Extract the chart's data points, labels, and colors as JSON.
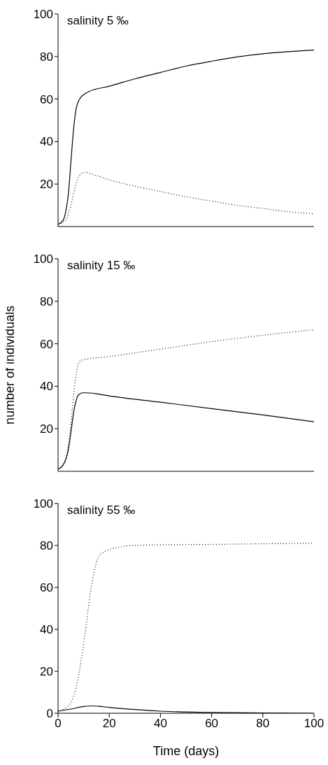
{
  "chart_data": [
    {
      "type": "line",
      "annotations": [
        "salinity 5 ‰"
      ],
      "xlim": [
        0,
        100
      ],
      "xticks": [
        0,
        20,
        40,
        60,
        80,
        100
      ],
      "ylim": [
        0,
        100
      ],
      "yticks": [
        20,
        40,
        60,
        80,
        100
      ],
      "tick_labels": "y",
      "grid": false,
      "legend": false,
      "marker": "none",
      "series": [
        {
          "color": "#000000",
          "line_style": "solid",
          "x": [
            0,
            2,
            3,
            4,
            5,
            6,
            7,
            8,
            9,
            10,
            12,
            20,
            30,
            40,
            50,
            60,
            70,
            80,
            90,
            100
          ],
          "values": [
            1,
            3,
            7,
            15,
            30,
            45,
            55,
            59,
            61,
            62,
            63.5,
            66,
            69.5,
            72.5,
            75.5,
            77.8,
            79.8,
            81.3,
            82.3,
            83
          ]
        },
        {
          "color": "#000000",
          "line_style": "dotted",
          "x": [
            0,
            3,
            5,
            7,
            9,
            10,
            15,
            20,
            30,
            40,
            50,
            60,
            70,
            80,
            90,
            100
          ],
          "values": [
            1,
            3,
            10,
            20,
            25,
            25.5,
            24,
            22,
            19,
            16.5,
            14,
            12,
            10,
            8.5,
            7,
            6
          ]
        }
      ]
    },
    {
      "type": "line",
      "annotations": [
        "salinity 15 ‰"
      ],
      "ylabel": "number of individuals",
      "xlim": [
        0,
        100
      ],
      "xticks": [
        0,
        20,
        40,
        60,
        80,
        100
      ],
      "ylim": [
        0,
        100
      ],
      "yticks": [
        20,
        40,
        60,
        80,
        100
      ],
      "tick_labels": "y",
      "grid": false,
      "legend": false,
      "marker": "none",
      "series": [
        {
          "color": "#000000",
          "line_style": "solid",
          "x": [
            0,
            2,
            4,
            5,
            6,
            7,
            8,
            10,
            15,
            20,
            40,
            60,
            80,
            100
          ],
          "values": [
            1,
            3,
            10,
            18,
            27,
            33,
            36,
            37,
            36.5,
            35.5,
            32.5,
            29.5,
            26.5,
            23.3
          ]
        },
        {
          "color": "#000000",
          "line_style": "dotted",
          "x": [
            0,
            2,
            4,
            5,
            6,
            7,
            8,
            10,
            20,
            40,
            60,
            80,
            100
          ],
          "values": [
            1,
            3,
            12,
            22,
            35,
            45,
            51,
            52.5,
            54,
            57.5,
            61,
            64,
            66.6
          ]
        }
      ]
    },
    {
      "type": "line",
      "annotations": [
        "salinity 55 ‰"
      ],
      "xlabel": "Time (days)",
      "xlim": [
        0,
        100
      ],
      "xticks": [
        0,
        20,
        40,
        60,
        80,
        100
      ],
      "ylim": [
        0,
        100
      ],
      "yticks": [
        0,
        20,
        40,
        60,
        80,
        100
      ],
      "grid": false,
      "legend": false,
      "marker": "none",
      "series": [
        {
          "color": "#000000",
          "line_style": "solid",
          "x": [
            0,
            5,
            10,
            13,
            16,
            20,
            30,
            40,
            60,
            80,
            100
          ],
          "values": [
            1,
            2,
            3.2,
            3.5,
            3.3,
            2.8,
            1.8,
            1,
            0.4,
            0.1,
            0
          ]
        },
        {
          "color": "#000000",
          "line_style": "dotted",
          "x": [
            0,
            3,
            5,
            7,
            9,
            10,
            11,
            12,
            13,
            14,
            15,
            16,
            18,
            20,
            25,
            30,
            40,
            60,
            80,
            100
          ],
          "values": [
            1,
            2.5,
            5,
            12,
            25,
            33,
            42,
            52,
            60,
            67,
            72,
            75,
            77,
            78,
            79.5,
            80,
            80.3,
            80.5,
            80.8,
            81
          ]
        }
      ]
    }
  ]
}
